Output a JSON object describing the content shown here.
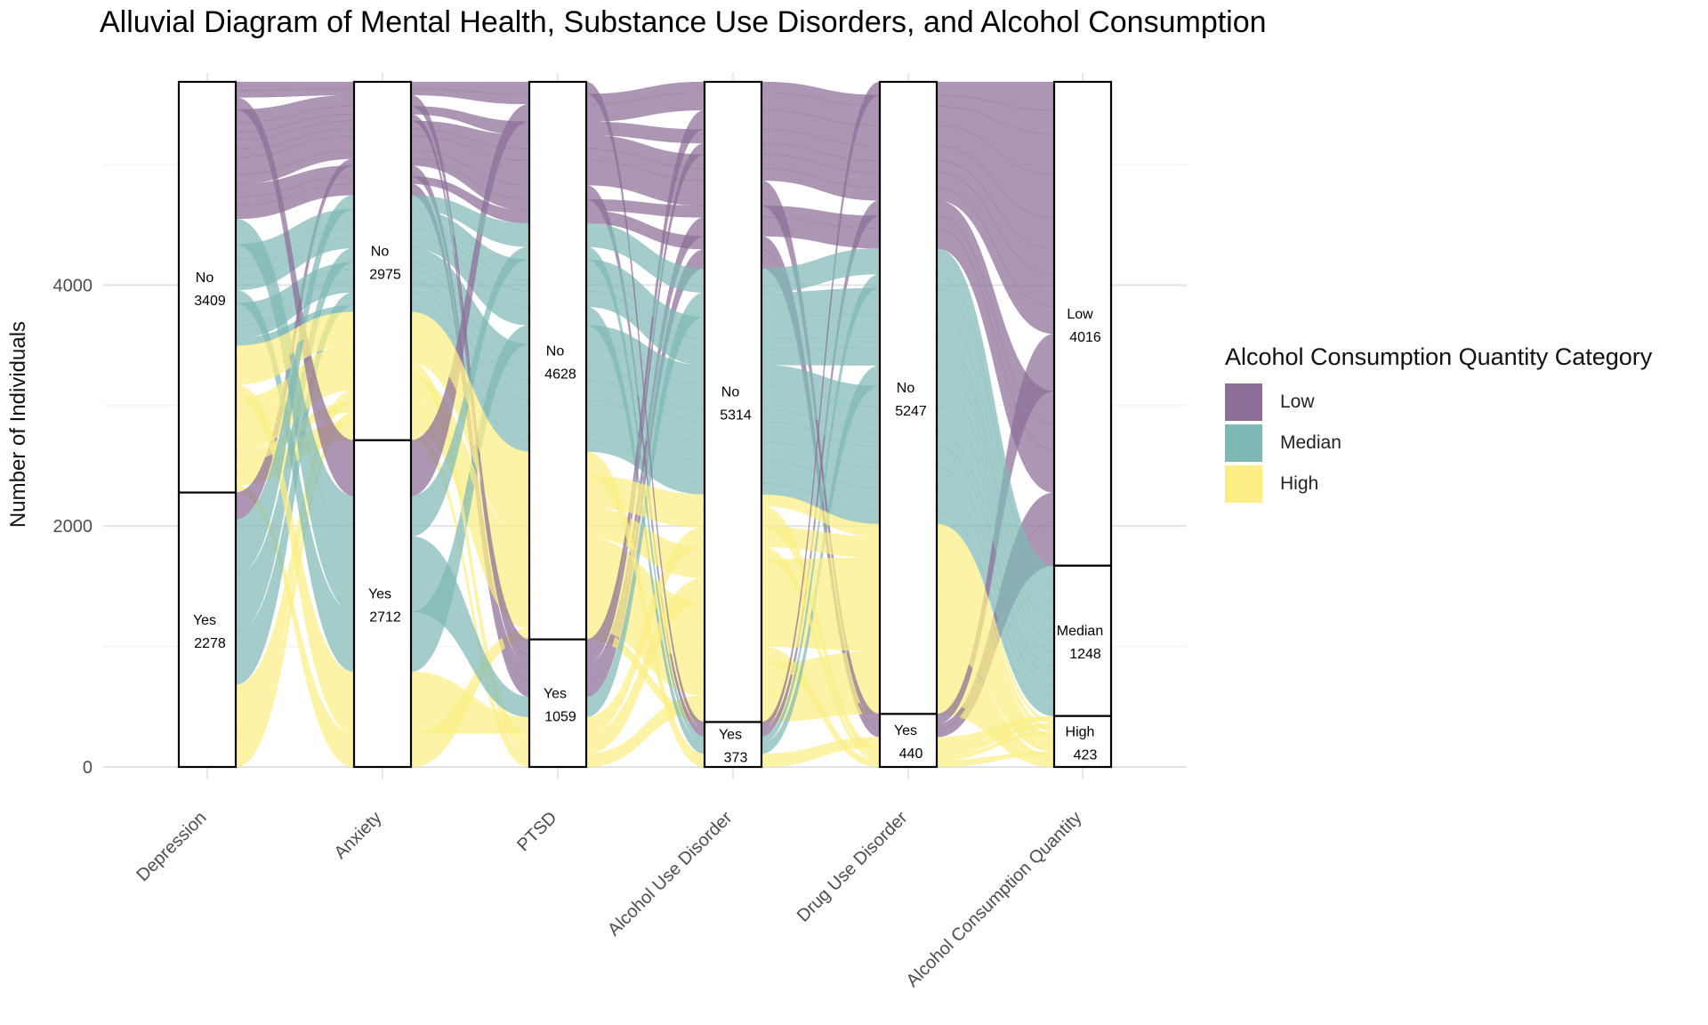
{
  "chart_data": {
    "type": "alluvial",
    "title": "Alluvial Diagram of Mental Health, Substance Use Disorders, and Alcohol Consumption",
    "ylabel": "Number of Individuals",
    "xlabel": "",
    "ylim": [
      0,
      5687
    ],
    "yticks": [
      0,
      2000,
      4000
    ],
    "total": 5687,
    "axes": [
      {
        "name": "Depression",
        "strata": [
          {
            "label": "No",
            "value": 3409
          },
          {
            "label": "Yes",
            "value": 2278
          }
        ]
      },
      {
        "name": "Anxiety",
        "strata": [
          {
            "label": "No",
            "value": 2975
          },
          {
            "label": "Yes",
            "value": 2712
          }
        ]
      },
      {
        "name": "PTSD",
        "strata": [
          {
            "label": "No",
            "value": 4628
          },
          {
            "label": "Yes",
            "value": 1059
          }
        ]
      },
      {
        "name": "Alcohol Use Disorder",
        "strata": [
          {
            "label": "No",
            "value": 5314
          },
          {
            "label": "Yes",
            "value": 373
          }
        ]
      },
      {
        "name": "Drug Use Disorder",
        "strata": [
          {
            "label": "No",
            "value": 5247
          },
          {
            "label": "Yes",
            "value": 440
          }
        ]
      },
      {
        "name": "Alcohol Consumption Quantity",
        "strata": [
          {
            "label": "Low",
            "value": 4016
          },
          {
            "label": "Median",
            "value": 1248
          },
          {
            "label": "High",
            "value": 423
          }
        ]
      }
    ],
    "fill_categories": [
      "Low",
      "Median",
      "High"
    ],
    "legend": {
      "title": "Alcohol Consumption Quantity Category",
      "position": "right",
      "items": [
        {
          "label": "Low",
          "color": "#8c6d97"
        },
        {
          "label": "Median",
          "color": "#7fb9b5"
        },
        {
          "label": "High",
          "color": "#fbee85"
        }
      ]
    },
    "grid": true
  }
}
